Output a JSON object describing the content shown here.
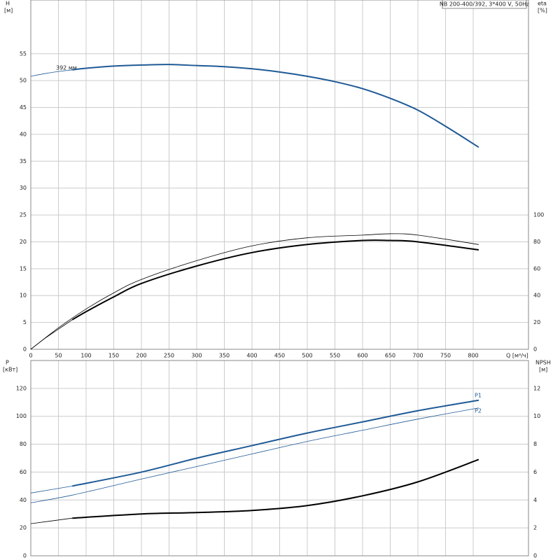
{
  "chart_data": [
    {
      "type": "line",
      "title": "NB 200-400/392, 3*400 V, 50Hz",
      "y_label": "H",
      "y_unit": "[м]",
      "y2_label": "eta",
      "y2_unit": "[%]",
      "x_label": "Q [м³/ч]",
      "annotation": "392 мм",
      "xlim": [
        0,
        900
      ],
      "xticks": [
        0,
        50,
        100,
        150,
        200,
        250,
        300,
        350,
        400,
        450,
        500,
        550,
        600,
        650,
        700,
        750,
        800
      ],
      "ylim": [
        0,
        65
      ],
      "yticks": [
        0,
        5,
        10,
        15,
        20,
        25,
        30,
        35,
        40,
        45,
        50,
        55
      ],
      "y2lim": [
        0,
        260
      ],
      "y2ticks": [
        0,
        20,
        40,
        60,
        80,
        100
      ],
      "grid": true,
      "series": [
        {
          "color": "#1f5a96",
          "width": 0.8,
          "x": [
            0,
            25,
            50,
            75
          ],
          "values": [
            50.8,
            51.3,
            51.7,
            52
          ]
        },
        {
          "color": "#1f5a96",
          "width": 2,
          "x": [
            75,
            100,
            150,
            200,
            250,
            300,
            350,
            400,
            450,
            500,
            550,
            600,
            650,
            700,
            750,
            810
          ],
          "values": [
            52,
            52.3,
            52.7,
            52.9,
            53,
            52.8,
            52.6,
            52.2,
            51.6,
            50.8,
            49.8,
            48.5,
            46.7,
            44.5,
            41.5,
            37.6
          ]
        },
        {
          "color": "#000000",
          "width": 0.8,
          "axis": "y2",
          "x": [
            0,
            25,
            50,
            75
          ],
          "values": [
            0,
            8,
            15,
            22
          ]
        },
        {
          "color": "#000000",
          "width": 2,
          "axis": "y2",
          "x": [
            75,
            100,
            150,
            200,
            300,
            400,
            500,
            600,
            650,
            700,
            810
          ],
          "values": [
            22,
            28,
            39,
            49,
            62,
            72,
            78,
            81,
            81,
            80,
            74
          ]
        },
        {
          "color": "#000000",
          "width": 0.8,
          "axis": "y2",
          "x": [
            0,
            50,
            100,
            150,
            200,
            300,
            400,
            500,
            600,
            650,
            700,
            810
          ],
          "values": [
            0,
            16,
            30,
            42,
            52,
            66,
            77,
            83,
            85,
            86,
            85,
            78
          ]
        }
      ]
    },
    {
      "type": "line",
      "y_label": "P",
      "y_unit": "[кВт]",
      "y2_label": "NPSH",
      "y2_unit": "[м]",
      "ylim": [
        0,
        140
      ],
      "yticks": [
        0,
        20,
        40,
        60,
        80,
        100,
        120
      ],
      "y2lim": [
        0,
        14
      ],
      "y2ticks": [
        0,
        2,
        4,
        6,
        8,
        10,
        12
      ],
      "grid": true,
      "series": [
        {
          "color": "#1f5a96",
          "width": 0.8,
          "x": [
            0,
            75
          ],
          "values": [
            45,
            50
          ]
        },
        {
          "name": "P1",
          "color": "#1f5a96",
          "width": 2,
          "x": [
            75,
            200,
            300,
            400,
            500,
            600,
            700,
            810
          ],
          "values": [
            50,
            60,
            70,
            79,
            88,
            96,
            104,
            111.5
          ]
        },
        {
          "name": "P2",
          "color": "#1f5a96",
          "width": 0.8,
          "x": [
            0,
            75,
            200,
            300,
            400,
            500,
            600,
            700,
            810
          ],
          "values": [
            38,
            43.5,
            55,
            64,
            73,
            82,
            90,
            98,
            106
          ]
        },
        {
          "color": "#000000",
          "width": 0.8,
          "axis": "y2",
          "x": [
            0,
            75
          ],
          "values": [
            2.3,
            2.7
          ]
        },
        {
          "color": "#000000",
          "width": 2,
          "axis": "y2",
          "x": [
            75,
            200,
            300,
            400,
            500,
            600,
            700,
            810
          ],
          "values": [
            2.7,
            3.0,
            3.1,
            3.25,
            3.6,
            4.3,
            5.3,
            6.9
          ]
        }
      ]
    }
  ]
}
